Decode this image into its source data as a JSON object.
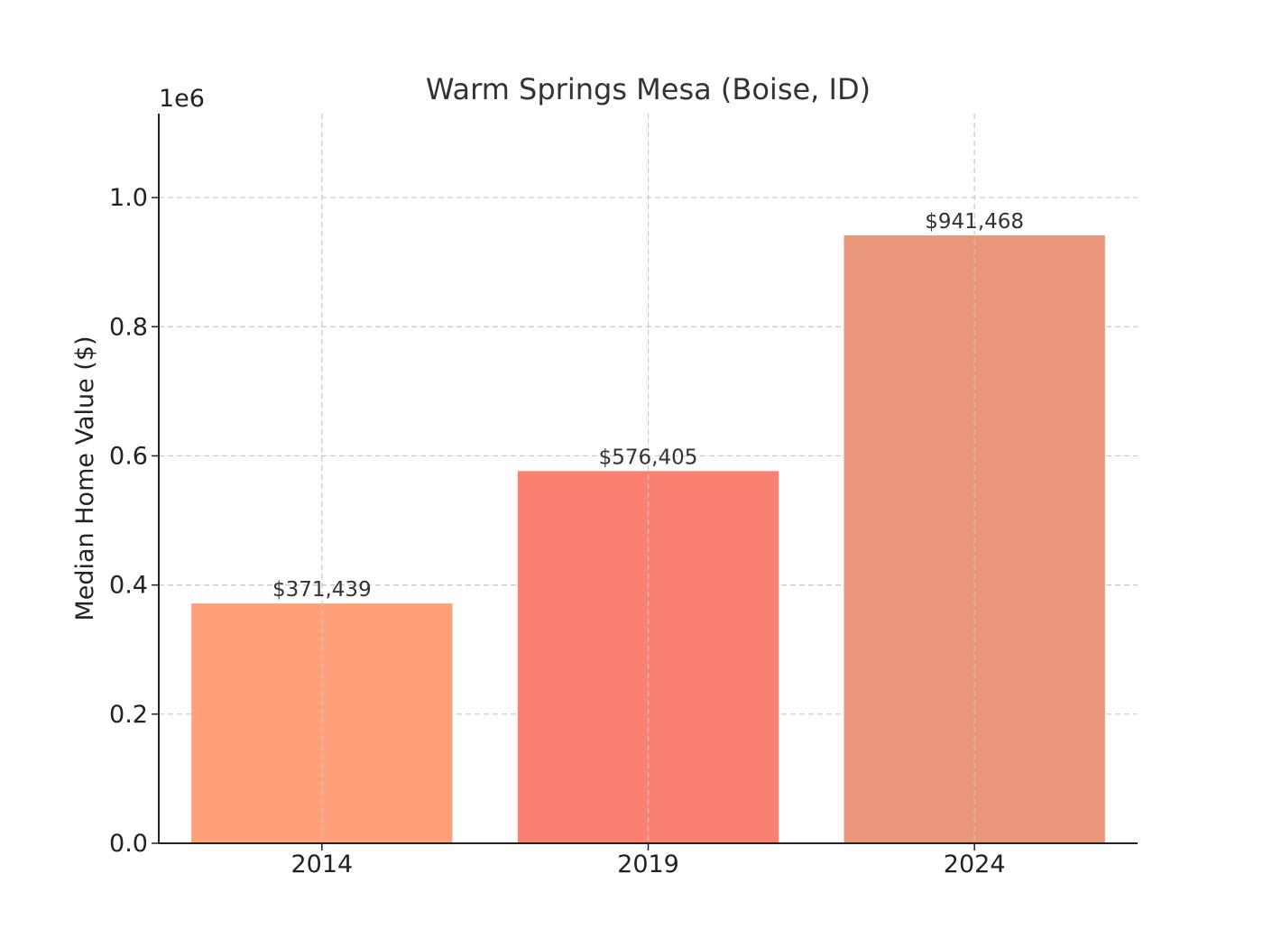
{
  "chart_data": {
    "type": "bar",
    "title": "Warm Springs Mesa (Boise, ID)",
    "xlabel": "",
    "ylabel": "Median Home Value ($)",
    "y_offset_label": "1e6",
    "categories": [
      "2014",
      "2019",
      "2024"
    ],
    "values": [
      371439,
      576405,
      941468
    ],
    "data_labels": [
      "$371,439",
      "$576,405",
      "$941,468"
    ],
    "y_ticks": [
      0,
      200000,
      400000,
      600000,
      800000,
      1000000
    ],
    "y_tick_labels": [
      "0.0",
      "0.2",
      "0.4",
      "0.6",
      "0.8",
      "1.0"
    ],
    "ylim": [
      0,
      1130000
    ],
    "grid": true,
    "bar_colors": [
      "#FFA07A",
      "#FA8072",
      "#E9967A"
    ]
  }
}
